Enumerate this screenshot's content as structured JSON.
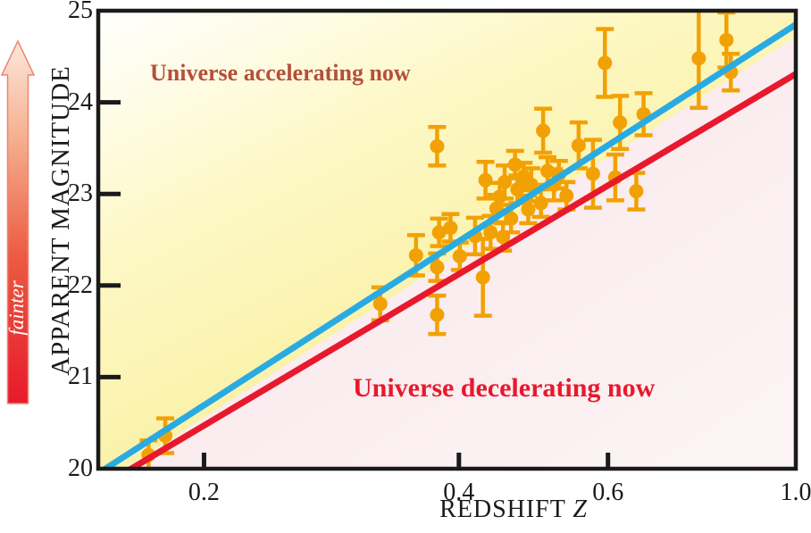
{
  "chart_data": {
    "type": "scatter",
    "title": "",
    "xlabel": "REDSHIFT Z",
    "xlabel_main": "REDSHIFT",
    "xlabel_italic": "Z",
    "ylabel": "APPARENT MAGNITUDE",
    "arrow_label": "fainter",
    "x_scale": "log",
    "y_scale": "linear",
    "xlim": [
      0.15,
      1.0
    ],
    "ylim": [
      20,
      25
    ],
    "x_ticks": [
      0.2,
      0.4,
      0.6,
      1.0
    ],
    "x_tick_labels": [
      "0.2",
      "0.4",
      "0.6",
      "1.0"
    ],
    "y_ticks": [
      20,
      21,
      22,
      23,
      24,
      25
    ],
    "y_tick_labels": [
      "20",
      "21",
      "22",
      "23",
      "24",
      "25"
    ],
    "grid": false,
    "legend": "none",
    "annotations": [
      {
        "text": "Universe accelerating now",
        "color": "#B4503A",
        "region": "above accelerating line"
      },
      {
        "text": "Universe decelerating now",
        "color": "#E8192C",
        "region": "below decelerating line"
      }
    ],
    "lines": [
      {
        "name": "accelerating-universe-model",
        "color": "#29ABE2",
        "points_zmag": [
          [
            0.15,
            19.95
          ],
          [
            1.0,
            24.85
          ]
        ]
      },
      {
        "name": "decelerating-universe-model",
        "color": "#E8192C",
        "points_zmag": [
          [
            0.16,
            19.94
          ],
          [
            1.0,
            24.31
          ]
        ]
      }
    ],
    "series": [
      {
        "name": "high-redshift supernovae",
        "marker": "circle",
        "color": "#F2A104",
        "points": [
          {
            "z": 0.172,
            "mag": 20.15,
            "err": 0.16
          },
          {
            "z": 0.18,
            "mag": 20.36,
            "err": 0.19
          },
          {
            "z": 0.323,
            "mag": 21.8,
            "err": 0.18
          },
          {
            "z": 0.356,
            "mag": 22.33,
            "err": 0.22
          },
          {
            "z": 0.377,
            "mag": 21.68,
            "err": 0.21
          },
          {
            "z": 0.377,
            "mag": 22.2,
            "err": 0.15
          },
          {
            "z": 0.401,
            "mag": 22.32,
            "err": 0.15
          },
          {
            "z": 0.377,
            "mag": 23.52,
            "err": 0.21
          },
          {
            "z": 0.427,
            "mag": 22.09,
            "err": 0.42
          },
          {
            "z": 0.43,
            "mag": 23.15,
            "err": 0.2
          },
          {
            "z": 0.443,
            "mag": 22.84,
            "err": 0.15
          },
          {
            "z": 0.436,
            "mag": 22.58,
            "err": 0.18
          },
          {
            "z": 0.451,
            "mag": 22.53,
            "err": 0.15
          },
          {
            "z": 0.453,
            "mag": 23.13,
            "err": 0.18
          },
          {
            "z": 0.469,
            "mag": 23.05,
            "err": 0.15
          },
          {
            "z": 0.466,
            "mag": 23.32,
            "err": 0.15
          },
          {
            "z": 0.483,
            "mag": 22.83,
            "err": 0.15
          },
          {
            "z": 0.487,
            "mag": 23.1,
            "err": 0.18
          },
          {
            "z": 0.503,
            "mag": 23.69,
            "err": 0.24
          },
          {
            "z": 0.509,
            "mag": 23.25,
            "err": 0.15
          },
          {
            "z": 0.518,
            "mag": 23.1,
            "err": 0.17
          },
          {
            "z": 0.525,
            "mag": 23.21,
            "err": 0.15
          },
          {
            "z": 0.554,
            "mag": 23.53,
            "err": 0.25
          },
          {
            "z": 0.576,
            "mag": 23.22,
            "err": 0.37
          },
          {
            "z": 0.595,
            "mag": 24.43,
            "err": 0.37
          },
          {
            "z": 0.612,
            "mag": 23.18,
            "err": 0.25
          },
          {
            "z": 0.62,
            "mag": 23.78,
            "err": 0.29
          },
          {
            "z": 0.648,
            "mag": 23.03,
            "err": 0.2
          },
          {
            "z": 0.661,
            "mag": 23.87,
            "err": 0.23
          },
          {
            "z": 0.768,
            "mag": 24.48,
            "err": 0.54
          },
          {
            "z": 0.828,
            "mag": 24.68,
            "err": 0.3
          },
          {
            "z": 0.838,
            "mag": 24.33,
            "err": 0.2
          },
          {
            "z": 0.418,
            "mag": 22.54,
            "err": 0.2
          },
          {
            "z": 0.461,
            "mag": 22.73,
            "err": 0.15
          },
          {
            "z": 0.5,
            "mag": 22.9,
            "err": 0.15
          },
          {
            "z": 0.379,
            "mag": 22.58,
            "err": 0.15
          },
          {
            "z": 0.391,
            "mag": 22.63,
            "err": 0.15
          },
          {
            "z": 0.447,
            "mag": 22.97,
            "err": 0.15
          },
          {
            "z": 0.477,
            "mag": 23.19,
            "err": 0.15
          },
          {
            "z": 0.536,
            "mag": 22.98,
            "err": 0.15
          }
        ]
      }
    ]
  },
  "colors": {
    "point_orange": "#F2A104",
    "accelerating_line_blue": "#29ABE2",
    "decelerating_line_red": "#E8192C",
    "accelerating_text": "#B4503A",
    "decelerating_text": "#E8192C",
    "axis_black": "#1A1A1A",
    "accelerating_region_gradient": [
      "#FFFFFF",
      "#FDF8C6",
      "#F9F0A0"
    ],
    "decelerating_region_gradient": [
      "#F6E1E8",
      "#FAECEF",
      "#FCF5F5"
    ],
    "fainter_arrow_gradient_bottom_to_top": [
      "#E8192C",
      "#EB5A41",
      "#F5B494",
      "#FBE8DC"
    ],
    "fainter_text": "#FFFFFF"
  }
}
